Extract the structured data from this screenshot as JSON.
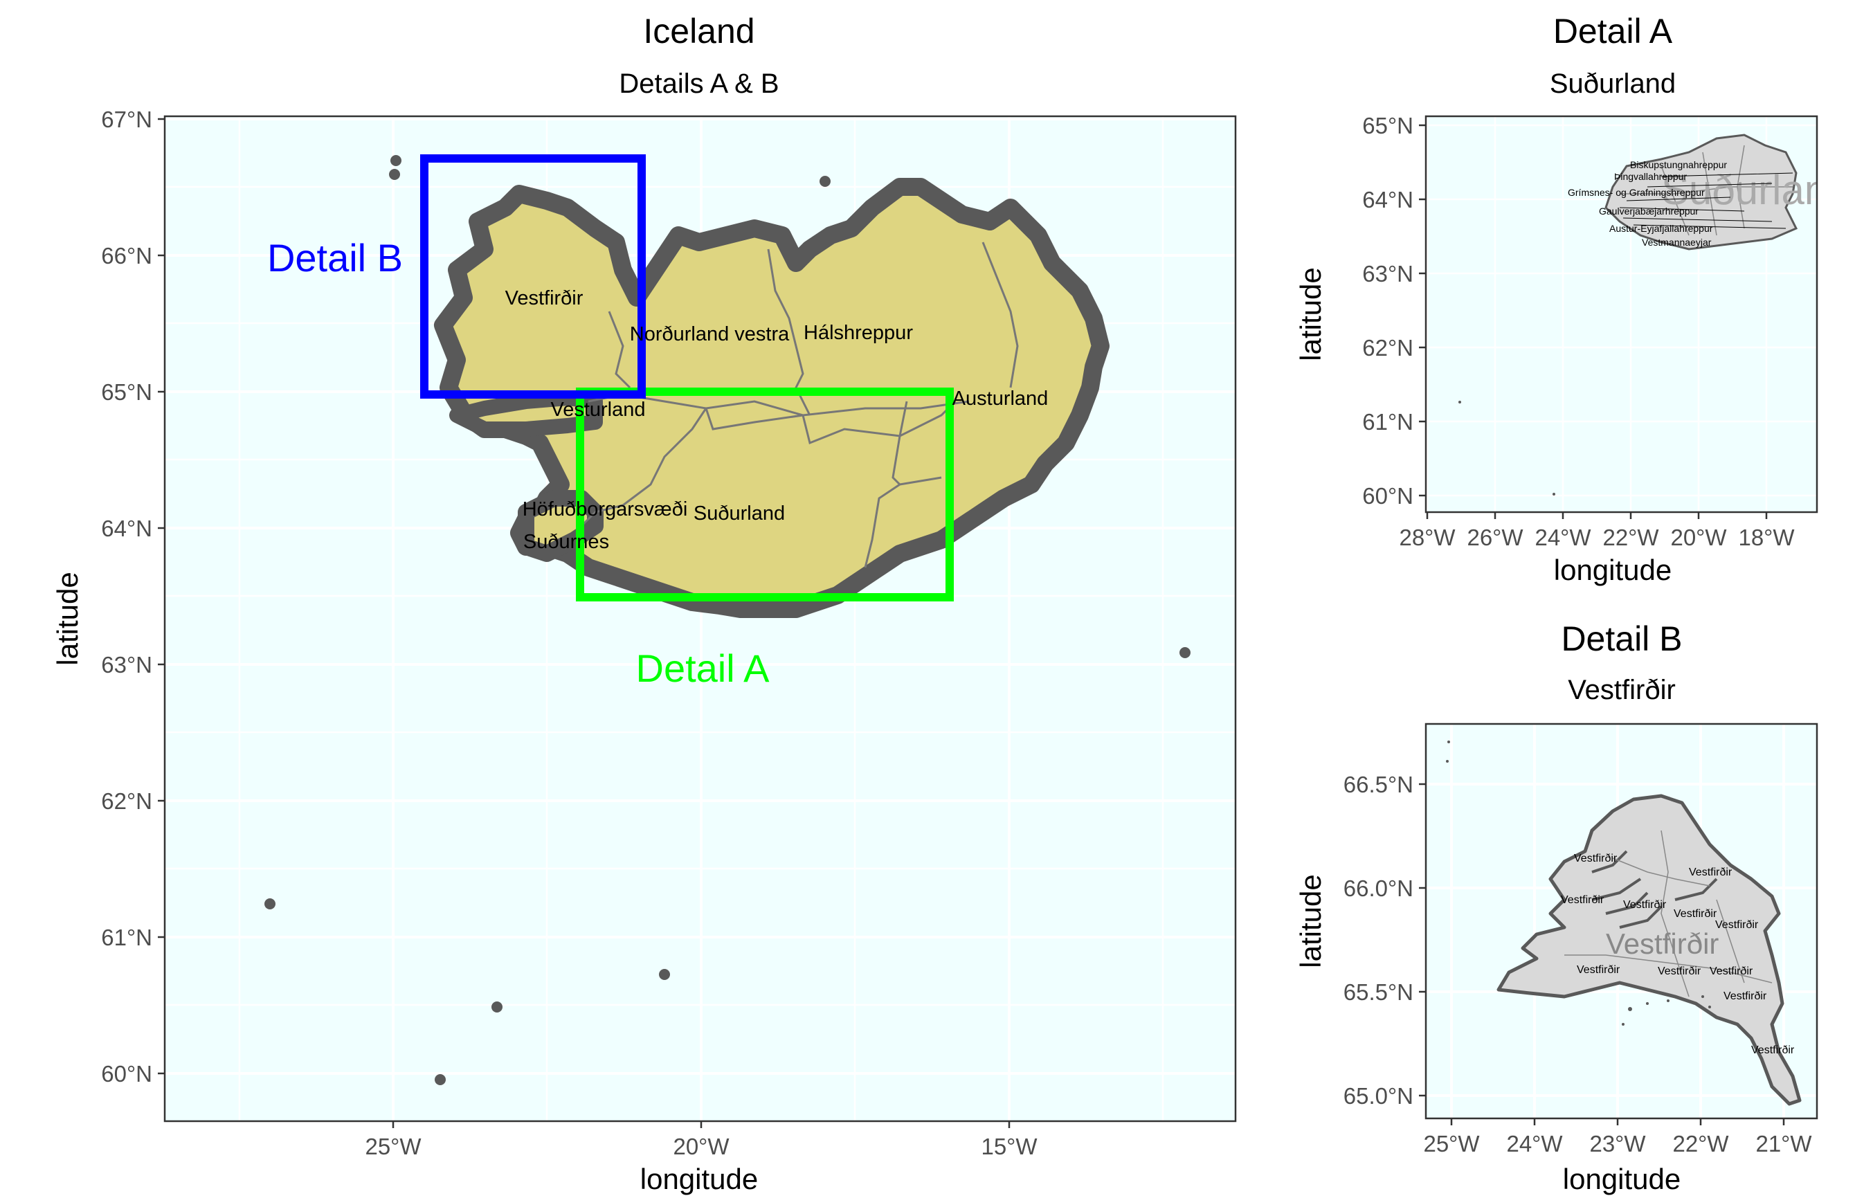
{
  "main": {
    "title": "Iceland",
    "subtitle": "Details A & B",
    "xlabel": "longitude",
    "ylabel": "latitude",
    "y_ticks": [
      "67°N",
      "66°N",
      "65°N",
      "64°N",
      "63°N",
      "62°N",
      "61°N",
      "60°N"
    ],
    "x_ticks": [
      "25°W",
      "20°W",
      "15°W"
    ],
    "regions": [
      "Vestfirðir",
      "Norðurland vestra",
      "Hálshreppur",
      "Vesturland",
      "Austurland",
      "Höfuðborgarsvæði",
      "Suðurland",
      "Suðurnes"
    ],
    "detail_a_label": "Detail A",
    "detail_b_label": "Detail B"
  },
  "detail_a": {
    "title": "Detail A",
    "subtitle": "Suðurland",
    "xlabel": "longitude",
    "ylabel": "latitude",
    "y_ticks": [
      "65°N",
      "64°N",
      "63°N",
      "62°N",
      "61°N",
      "60°N"
    ],
    "x_ticks": [
      "28°W",
      "26°W",
      "24°W",
      "22°W",
      "20°W",
      "18°W"
    ],
    "labels": [
      "Biskupstungnahreppur",
      "Þingvallahreppur",
      "Grímsnes- og Grafningshreppur",
      "Gaulverjabæjarhreppur",
      "Austur-Eyjafjallahreppur",
      "Vestmannaeyjar"
    ],
    "watermark": "Suðurland"
  },
  "detail_b": {
    "title": "Detail B",
    "subtitle": "Vestfirðir",
    "xlabel": "longitude",
    "ylabel": "latitude",
    "y_ticks": [
      "66.5°N",
      "66.0°N",
      "65.5°N",
      "65.0°N"
    ],
    "x_ticks": [
      "25°W",
      "24°W",
      "23°W",
      "22°W",
      "21°W"
    ],
    "small_label": "Vestfirðir",
    "watermark": "Vestfirðir"
  },
  "colors": {
    "panel_bg": "#F0FFFF",
    "land_fill": "#DED581",
    "coast": "#595959",
    "detail_a_box": "#00FF00",
    "detail_b_box": "#0000FF",
    "inset_fill": "#D9D9D9"
  }
}
